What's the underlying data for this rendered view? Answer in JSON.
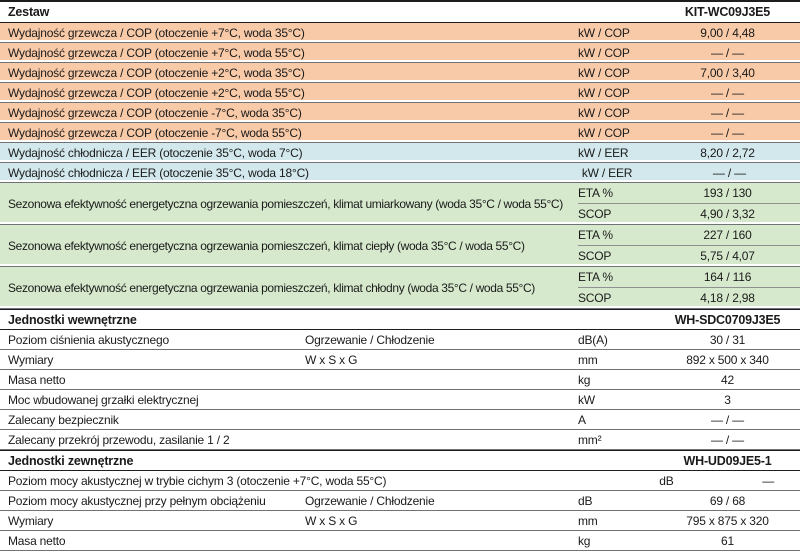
{
  "palette": {
    "heating_row": "#f8caa8",
    "cooling_row": "#d3e8ec",
    "seasonal_row": "#d7e9cd",
    "row_divider": "#707276",
    "section_border": "#1d1d1f",
    "text": "#1a1a1a"
  },
  "table": {
    "sections": [
      {
        "header": {
          "label": "Zestaw",
          "model": "KIT-WC09J3E5"
        },
        "rows": [
          {
            "type": "simple",
            "bg": "heating",
            "label": "Wydajność grzewcza / COP (otoczenie +7°C, woda 35°C)",
            "sub": "",
            "unit": "kW / COP",
            "value": "9,00 / 4,48"
          },
          {
            "type": "simple",
            "bg": "heating",
            "label": "Wydajność grzewcza / COP (otoczenie +7°C, woda 55°C)",
            "sub": "",
            "unit": "kW / COP",
            "value": "— / —"
          },
          {
            "type": "simple",
            "bg": "heating",
            "label": "Wydajność grzewcza / COP (otoczenie +2°C, woda 35°C)",
            "sub": "",
            "unit": "kW / COP",
            "value": "7,00 / 3,40"
          },
          {
            "type": "simple",
            "bg": "heating",
            "label": "Wydajność grzewcza / COP (otoczenie +2°C, woda 55°C)",
            "sub": "",
            "unit": "kW / COP",
            "value": "— / —"
          },
          {
            "type": "simple",
            "bg": "heating",
            "label": "Wydajność grzewcza / COP (otoczenie -7°C, woda 35°C)",
            "sub": "",
            "unit": "kW / COP",
            "value": "— / —"
          },
          {
            "type": "simple",
            "bg": "heating",
            "label": "Wydajność grzewcza / COP (otoczenie -7°C, woda 55°C)",
            "sub": "",
            "unit": "kW / COP",
            "value": "— / —"
          },
          {
            "type": "simple",
            "bg": "cooling",
            "label": "Wydajność chłodnicza / EER (otoczenie 35°C, woda 7°C)",
            "sub": "",
            "unit": "kW / EER",
            "value": "8,20 / 2,72"
          },
          {
            "type": "simple",
            "bg": "cooling",
            "label": "Wydajność chłodnicza / EER (otoczenie 35°C, woda 18°C)",
            "sub": "",
            "unit": "kW / EER",
            "value": "— / —"
          },
          {
            "type": "double",
            "bg": "seasonal",
            "label": "Sezonowa efektywność energetyczna ogrzewania pomieszczeń, klimat umiarkowany (woda 35°C / woda 55°C)",
            "subrows": [
              {
                "unit": "ETA %",
                "value": "193 / 130"
              },
              {
                "unit": "SCOP",
                "value": "4,90 / 3,32"
              }
            ]
          },
          {
            "type": "double",
            "bg": "seasonal",
            "label": "Sezonowa efektywność energetyczna ogrzewania pomieszczeń, klimat ciepły (woda 35°C / woda 55°C)",
            "subrows": [
              {
                "unit": "ETA %",
                "value": "227 / 160"
              },
              {
                "unit": "SCOP",
                "value": "5,75 / 4,07"
              }
            ]
          },
          {
            "type": "double",
            "bg": "seasonal",
            "label": "Sezonowa efektywność energetyczna ogrzewania pomieszczeń, klimat chłodny (woda 35°C / woda 55°C)",
            "subrows": [
              {
                "unit": "ETA %",
                "value": "164 / 116"
              },
              {
                "unit": "SCOP",
                "value": "4,18 / 2,98"
              }
            ]
          }
        ]
      },
      {
        "header": {
          "label": "Jednostki wewnętrzne",
          "model": "WH-SDC0709J3E5"
        },
        "rows": [
          {
            "type": "simple",
            "bg": "none",
            "label": "Poziom ciśnienia akustycznego",
            "sub": "Ogrzewanie / Chłodzenie",
            "unit": "dB(A)",
            "value": "30 / 31"
          },
          {
            "type": "simple",
            "bg": "none",
            "label": "Wymiary",
            "sub": "W x S x G",
            "unit": "mm",
            "value": "892 x 500 x 340"
          },
          {
            "type": "simple",
            "bg": "none",
            "label": "Masa netto",
            "sub": "",
            "unit": "kg",
            "value": "42"
          },
          {
            "type": "simple",
            "bg": "none",
            "label": "Moc wbudowanej grzałki elektrycznej",
            "sub": "",
            "unit": "kW",
            "value": "3"
          },
          {
            "type": "simple",
            "bg": "none",
            "label": "Zalecany bezpiecznik",
            "sub": "",
            "unit": "A",
            "value": "— / —"
          },
          {
            "type": "simple",
            "bg": "none",
            "label": "Zalecany przekrój przewodu, zasilanie 1 / 2",
            "sub": "",
            "unit": "mm²",
            "value": "— / —"
          }
        ]
      },
      {
        "header": {
          "label": "Jednostki zewnętrzne",
          "model": "WH-UD09JE5-1"
        },
        "rows": [
          {
            "type": "simple",
            "bg": "none",
            "label": "Poziom mocy akustycznej w trybie cichym 3 (otoczenie +7°C, woda 55°C)",
            "sub": "",
            "unit": "dB",
            "value": "—"
          },
          {
            "type": "simple",
            "bg": "none",
            "label": "Poziom mocy akustycznej przy pełnym obciążeniu",
            "sub": "Ogrzewanie / Chłodzenie",
            "unit": "dB",
            "value": "69 / 68"
          },
          {
            "type": "simple",
            "bg": "none",
            "label": "Wymiary",
            "sub": "W x S x G",
            "unit": "mm",
            "value": "795 x 875 x 320"
          },
          {
            "type": "simple",
            "bg": "none",
            "label": "Masa netto",
            "sub": "",
            "unit": "kg",
            "value": "61"
          }
        ]
      }
    ]
  }
}
